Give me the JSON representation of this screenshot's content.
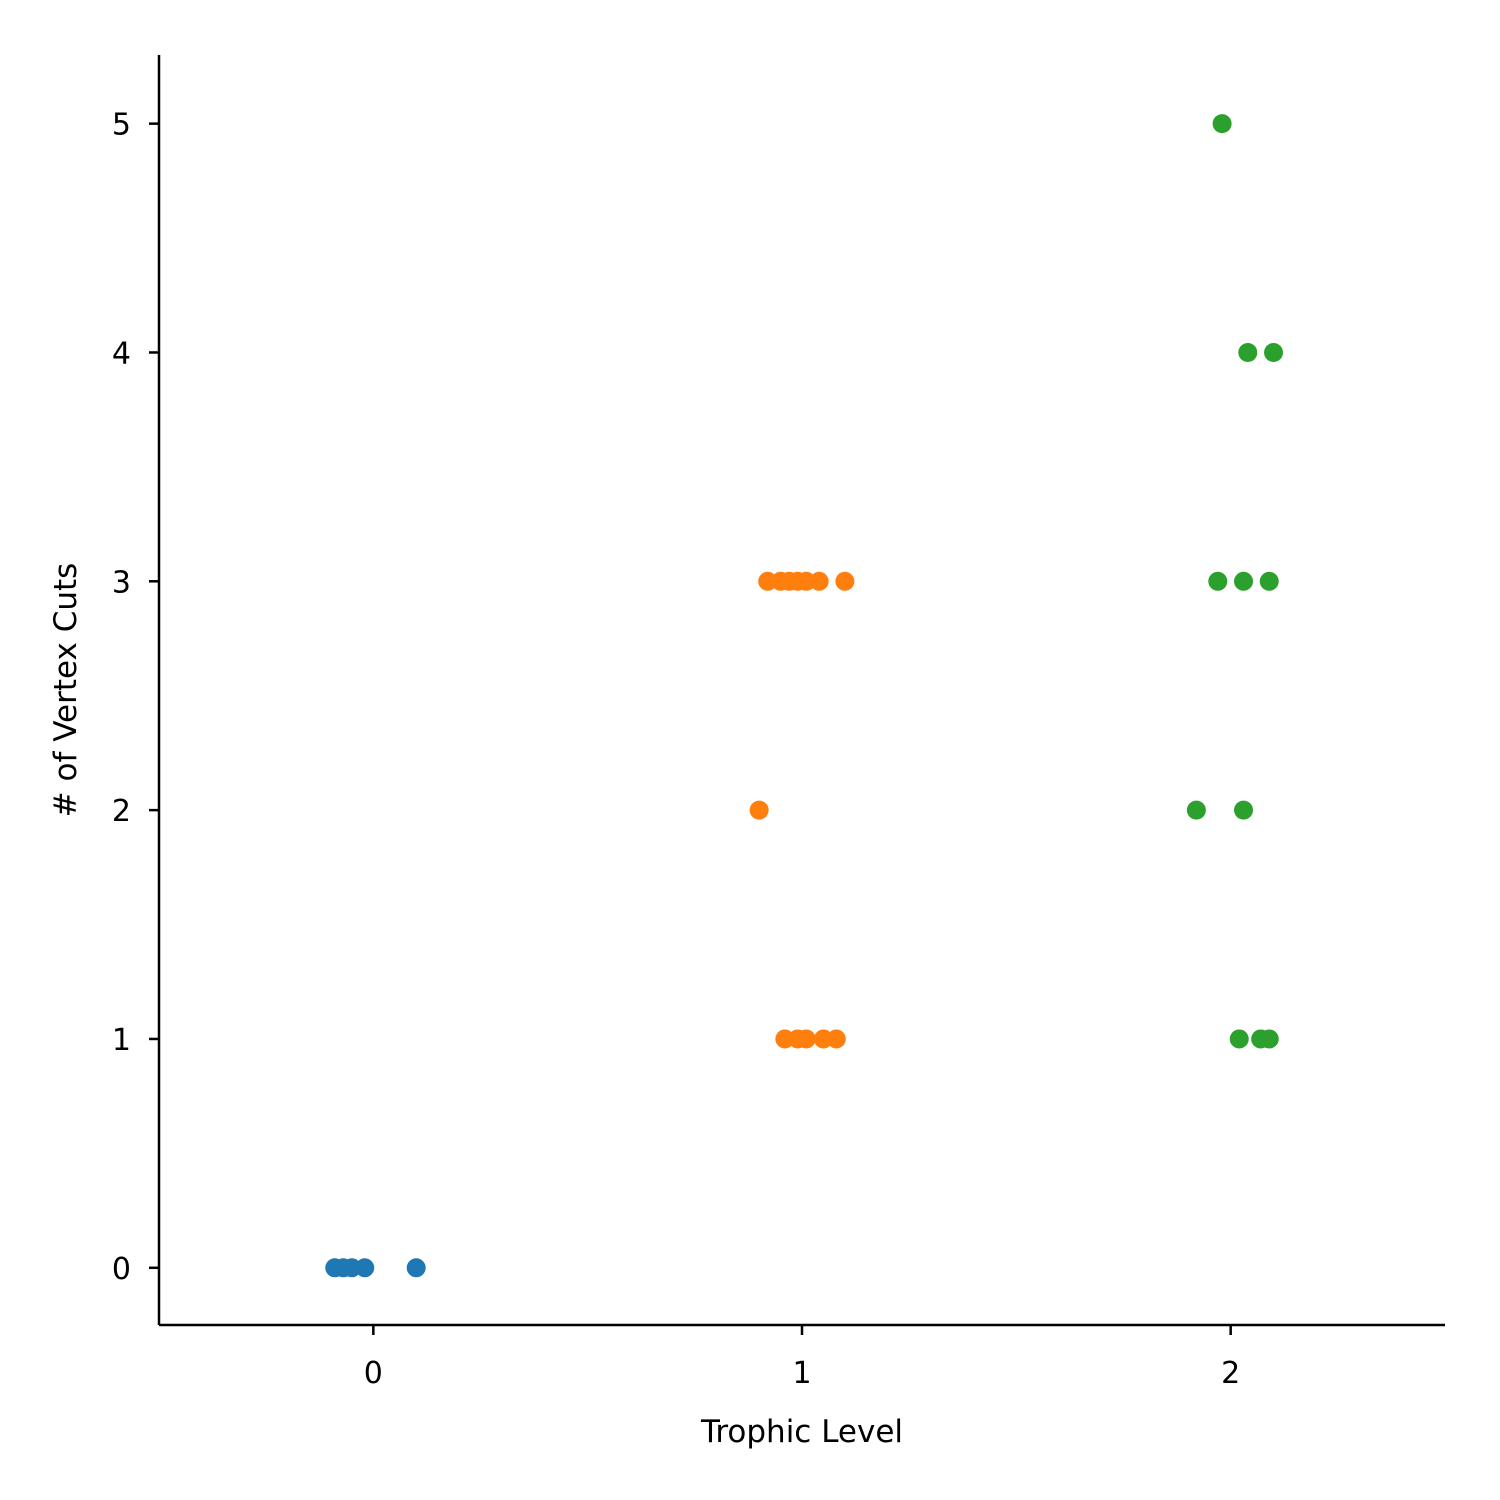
{
  "chart_data": {
    "type": "scatter",
    "title": "",
    "xlabel": "Trophic Level",
    "ylabel": "# of Vertex Cuts",
    "xlim": [
      -0.5,
      2.5
    ],
    "ylim": [
      -0.25,
      5.3
    ],
    "x_ticks": [
      0,
      1,
      2
    ],
    "y_ticks": [
      0,
      1,
      2,
      3,
      4,
      5
    ],
    "grid": false,
    "legend": "none",
    "series": [
      {
        "color": "#1f77b4",
        "points": [
          {
            "x": -0.09,
            "y": 0
          },
          {
            "x": -0.07,
            "y": 0
          },
          {
            "x": -0.05,
            "y": 0
          },
          {
            "x": -0.02,
            "y": 0
          },
          {
            "x": 0.1,
            "y": 0
          }
        ]
      },
      {
        "color": "#ff7f0e",
        "points": [
          {
            "x": 0.92,
            "y": 3
          },
          {
            "x": 0.95,
            "y": 3
          },
          {
            "x": 0.97,
            "y": 3
          },
          {
            "x": 0.99,
            "y": 3
          },
          {
            "x": 1.01,
            "y": 3
          },
          {
            "x": 1.04,
            "y": 3
          },
          {
            "x": 1.1,
            "y": 3
          },
          {
            "x": 0.9,
            "y": 2
          },
          {
            "x": 0.96,
            "y": 1
          },
          {
            "x": 0.99,
            "y": 1
          },
          {
            "x": 1.01,
            "y": 1
          },
          {
            "x": 1.05,
            "y": 1
          },
          {
            "x": 1.08,
            "y": 1
          }
        ]
      },
      {
        "color": "#2ca02c",
        "points": [
          {
            "x": 1.98,
            "y": 5
          },
          {
            "x": 2.04,
            "y": 4
          },
          {
            "x": 2.1,
            "y": 4
          },
          {
            "x": 1.97,
            "y": 3
          },
          {
            "x": 2.03,
            "y": 3
          },
          {
            "x": 2.09,
            "y": 3
          },
          {
            "x": 1.92,
            "y": 2
          },
          {
            "x": 2.03,
            "y": 2
          },
          {
            "x": 2.02,
            "y": 1
          },
          {
            "x": 2.07,
            "y": 1
          },
          {
            "x": 2.09,
            "y": 1
          }
        ]
      }
    ]
  }
}
